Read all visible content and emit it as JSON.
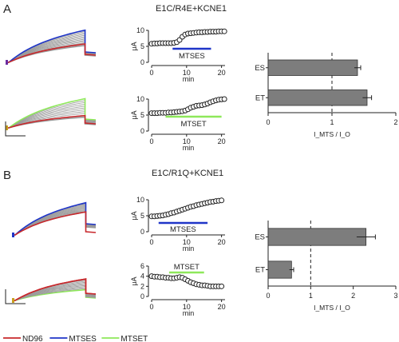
{
  "panels": [
    {
      "letter": "A",
      "construct": "E1C/R4E+KCNE1",
      "traces": {
        "color_top_accent": "#1f35c8",
        "color_bottom_accent": "#8ee85a",
        "color_ref": "#c8282c",
        "color_gray": "#9a9a9a"
      },
      "time_courses": [
        {
          "y_label": "μA",
          "x_label": "min",
          "y_ticks": [
            "0",
            "5",
            "10"
          ],
          "x_ticks": [
            "0",
            "10",
            "20"
          ],
          "ylim": [
            0,
            10
          ],
          "xlim": [
            0,
            21
          ],
          "bar_label": "MTSES",
          "bar_color": "#1f35c8",
          "bar_range": [
            6,
            17
          ],
          "points": [
            [
              0,
              5.8
            ],
            [
              0.8,
              5.9
            ],
            [
              1.6,
              5.9
            ],
            [
              2.4,
              6
            ],
            [
              3.2,
              6
            ],
            [
              4,
              6
            ],
            [
              4.8,
              6
            ],
            [
              5.6,
              6
            ],
            [
              6.4,
              6.1
            ],
            [
              7.2,
              6.3
            ],
            [
              8,
              7
            ],
            [
              8.8,
              8
            ],
            [
              9.6,
              8.7
            ],
            [
              10.4,
              9
            ],
            [
              11.2,
              9.1
            ],
            [
              12,
              9.2
            ],
            [
              12.8,
              9.3
            ],
            [
              13.6,
              9.4
            ],
            [
              14.4,
              9.4
            ],
            [
              15.2,
              9.5
            ],
            [
              16,
              9.5
            ],
            [
              16.8,
              9.6
            ],
            [
              17.6,
              9.6
            ],
            [
              18.4,
              9.6
            ],
            [
              19.2,
              9.7
            ],
            [
              20,
              9.7
            ],
            [
              20.8,
              9.7
            ]
          ]
        },
        {
          "y_label": "μA",
          "x_label": "min",
          "y_ticks": [
            "0",
            "5",
            "10"
          ],
          "x_ticks": [
            "0",
            "10",
            "20"
          ],
          "ylim": [
            0,
            10
          ],
          "xlim": [
            0,
            21
          ],
          "bar_label": "MTSET",
          "bar_color": "#8ee85a",
          "bar_range": [
            4,
            20
          ],
          "points": [
            [
              0,
              5.6
            ],
            [
              0.8,
              5.6
            ],
            [
              1.6,
              5.6
            ],
            [
              2.4,
              5.7
            ],
            [
              3.2,
              5.7
            ],
            [
              4,
              5.7
            ],
            [
              4.8,
              5.8
            ],
            [
              5.6,
              5.8
            ],
            [
              6.4,
              5.9
            ],
            [
              7.2,
              6
            ],
            [
              8,
              6.1
            ],
            [
              8.8,
              6.2
            ],
            [
              9.6,
              6.4
            ],
            [
              10.4,
              6.8
            ],
            [
              11.2,
              7.3
            ],
            [
              12,
              7.6
            ],
            [
              12.8,
              7.9
            ],
            [
              13.6,
              8
            ],
            [
              14.4,
              8.1
            ],
            [
              15.2,
              8.3
            ],
            [
              16,
              8.6
            ],
            [
              16.8,
              9
            ],
            [
              17.6,
              9.3
            ],
            [
              18.4,
              9.6
            ],
            [
              19.2,
              9.8
            ],
            [
              20,
              9.9
            ],
            [
              20.8,
              10
            ]
          ]
        }
      ],
      "bar_chart": {
        "type": "bar",
        "categories": [
          "ES",
          "ET"
        ],
        "values": [
          1.4,
          1.55
        ],
        "errors": [
          0.05,
          0.07
        ],
        "xlim": [
          0,
          2
        ],
        "x_ticks": [
          "0",
          "1",
          "2"
        ],
        "ref_line": 1,
        "x_label": "I_MTS / I_O"
      }
    },
    {
      "letter": "B",
      "construct": "E1C/R1Q+KCNE1",
      "traces": {
        "color_top_accent": "#1f35c8",
        "color_bottom_accent": "#8ee85a",
        "color_ref": "#c8282c",
        "color_gray": "#9a9a9a"
      },
      "time_courses": [
        {
          "y_label": "μA",
          "x_label": "min",
          "y_ticks": [
            "0",
            "5",
            "10"
          ],
          "x_ticks": [
            "0",
            "10",
            "20"
          ],
          "ylim": [
            0,
            10
          ],
          "xlim": [
            0,
            21
          ],
          "bar_label": "MTSES",
          "bar_color": "#1f35c8",
          "bar_range": [
            2,
            16
          ],
          "points": [
            [
              0,
              4.8
            ],
            [
              0.8,
              4.8
            ],
            [
              1.6,
              4.9
            ],
            [
              2.4,
              5
            ],
            [
              3.2,
              5.1
            ],
            [
              4,
              5.3
            ],
            [
              4.8,
              5.5
            ],
            [
              5.6,
              5.8
            ],
            [
              6.4,
              6
            ],
            [
              7.2,
              6.3
            ],
            [
              8,
              6.6
            ],
            [
              8.8,
              6.9
            ],
            [
              9.6,
              7.2
            ],
            [
              10.4,
              7.5
            ],
            [
              11.2,
              7.8
            ],
            [
              12,
              8
            ],
            [
              12.8,
              8.3
            ],
            [
              13.6,
              8.5
            ],
            [
              14.4,
              8.7
            ],
            [
              15.2,
              8.9
            ],
            [
              16,
              9.1
            ],
            [
              16.8,
              9.3
            ],
            [
              17.6,
              9.4
            ],
            [
              18.4,
              9.6
            ],
            [
              19.2,
              9.7
            ],
            [
              20,
              9.8
            ]
          ]
        },
        {
          "y_label": "μA",
          "x_label": "min",
          "y_ticks": [
            "0",
            "2",
            "4",
            "6"
          ],
          "x_ticks": [
            "0",
            "10",
            "20"
          ],
          "ylim": [
            0,
            6
          ],
          "xlim": [
            0,
            21
          ],
          "bar_label": "MTSET",
          "bar_color": "#8ee85a",
          "bar_range": [
            5,
            15
          ],
          "points": [
            [
              0,
              4
            ],
            [
              0.8,
              3.9
            ],
            [
              1.6,
              3.9
            ],
            [
              2.4,
              3.8
            ],
            [
              3.2,
              3.8
            ],
            [
              4,
              3.7
            ],
            [
              4.8,
              3.7
            ],
            [
              5.6,
              3.6
            ],
            [
              6.4,
              3.6
            ],
            [
              7.2,
              3.7
            ],
            [
              8,
              3.8
            ],
            [
              8.8,
              3.7
            ],
            [
              9.6,
              3.4
            ],
            [
              10.4,
              3.1
            ],
            [
              11.2,
              2.8
            ],
            [
              12,
              2.6
            ],
            [
              12.8,
              2.4
            ],
            [
              13.6,
              2.3
            ],
            [
              14.4,
              2.2
            ],
            [
              15.2,
              2.2
            ],
            [
              16,
              2.1
            ],
            [
              16.8,
              2
            ],
            [
              17.6,
              2
            ],
            [
              18.4,
              2
            ],
            [
              19.2,
              2
            ],
            [
              20,
              2
            ]
          ]
        }
      ],
      "bar_chart": {
        "type": "bar",
        "categories": [
          "ES",
          "ET"
        ],
        "values": [
          2.3,
          0.55
        ],
        "errors": [
          0.22,
          0.05
        ],
        "xlim": [
          0,
          3
        ],
        "x_ticks": [
          "0",
          "1",
          "2",
          "3"
        ],
        "ref_line": 1,
        "x_label": "I_MTS / I_O"
      }
    }
  ],
  "legend": [
    {
      "label": "ND96",
      "color": "#c8282c"
    },
    {
      "label": "MTSES",
      "color": "#1f35c8"
    },
    {
      "label": "MTSET",
      "color": "#8ee85a"
    }
  ]
}
